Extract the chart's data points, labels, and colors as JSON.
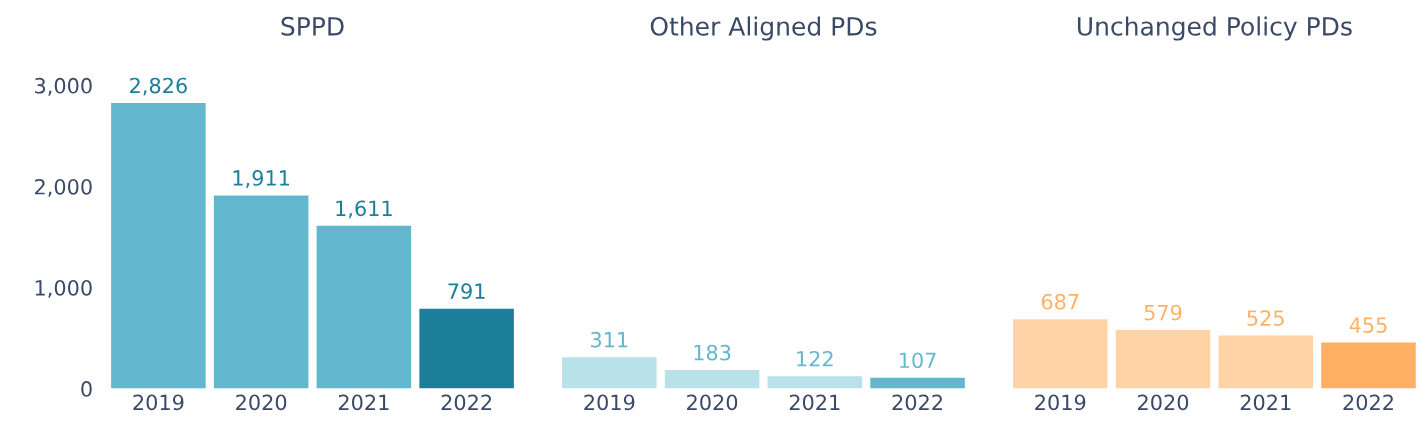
{
  "chart_data": [
    {
      "type": "bar",
      "title": "SPPD",
      "categories": [
        "2019",
        "2020",
        "2021",
        "2022"
      ],
      "values": [
        2826,
        1911,
        1611,
        791
      ],
      "colors": [
        "#62b7cf",
        "#62b7cf",
        "#62b7cf",
        "#1b7f9a"
      ],
      "ylim": [
        0,
        3000
      ],
      "yticks": [
        {
          "value": 0,
          "label": "0"
        },
        {
          "value": 1000,
          "label": "1,000"
        },
        {
          "value": 2000,
          "label": "2,000"
        },
        {
          "value": 3000,
          "label": "3,000"
        }
      ],
      "data_labels": true,
      "value_labels": [
        "2,826",
        "1,911",
        "1,611",
        "791"
      ]
    },
    {
      "type": "bar",
      "title": "Other Aligned PDs",
      "categories": [
        "2019",
        "2020",
        "2021",
        "2022"
      ],
      "values": [
        311,
        183,
        122,
        107
      ],
      "colors": [
        "#b9e1ea",
        "#b9e1ea",
        "#b9e1ea",
        "#62b7cf"
      ],
      "ylim": [
        0,
        3000
      ],
      "tick_labels": "x",
      "data_labels": true
    },
    {
      "type": "bar",
      "title": "Unchanged Policy PDs",
      "categories": [
        "2019",
        "2020",
        "2021",
        "2022"
      ],
      "values": [
        687,
        579,
        525,
        455
      ],
      "colors": [
        "#ffd3a5",
        "#ffd3a5",
        "#ffd3a5",
        "#ffb062"
      ],
      "ylim": [
        0,
        3000
      ],
      "tick_labels": "x",
      "data_labels": true
    }
  ]
}
